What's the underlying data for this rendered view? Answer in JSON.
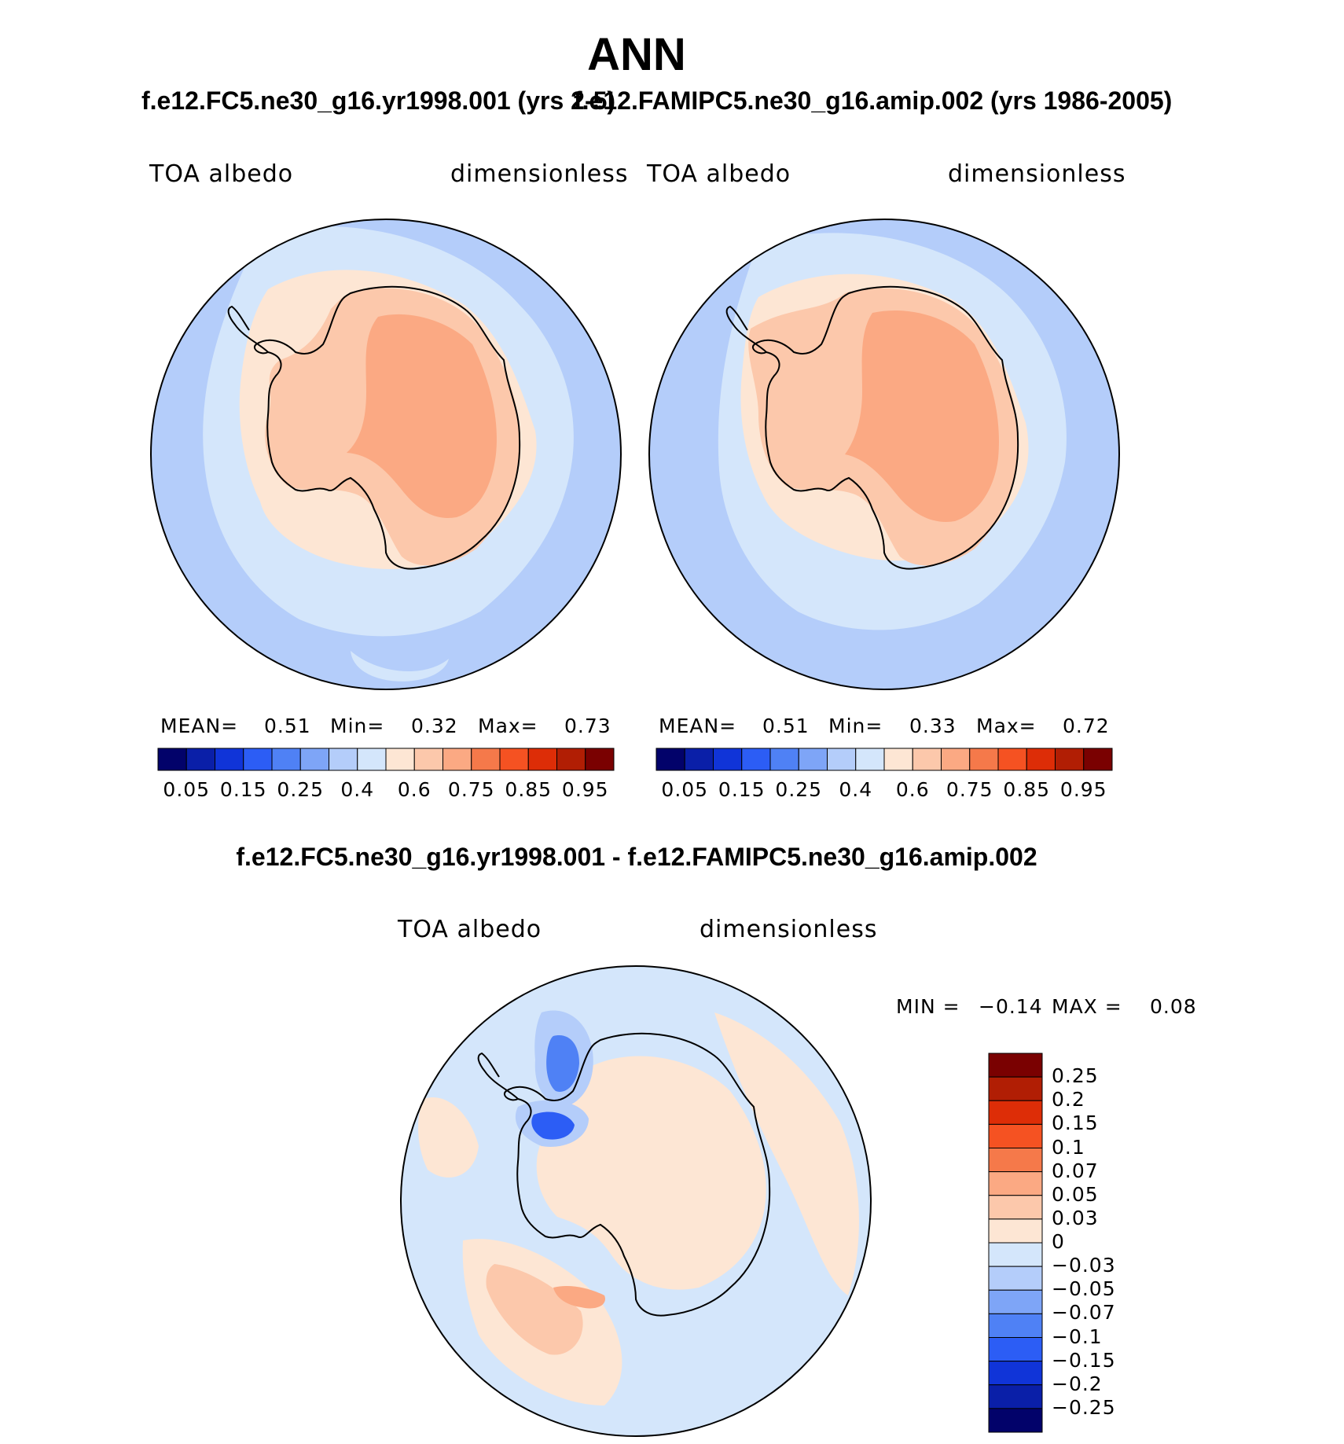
{
  "figure": {
    "title": "ANN",
    "left_run_title": "f.e12.FC5.ne30_g16.yr1998.001 (yrs 2-5)",
    "right_run_title": "f.e12.FAMIPC5.ne30_g16.amip.002 (yrs 1986-2005)",
    "diff_title": "f.e12.FC5.ne30_g16.yr1998.001 - f.e12.FAMIPC5.ne30_g16.amip.002"
  },
  "panels": [
    {
      "variable": "TOA albedo",
      "units": "dimensionless",
      "stats": {
        "mean_label": "MEAN=",
        "mean": "0.51",
        "min_label": "Min=",
        "min": "0.32",
        "max_label": "Max=",
        "max": "0.73"
      }
    },
    {
      "variable": "TOA albedo",
      "units": "dimensionless",
      "stats": {
        "mean_label": "MEAN=",
        "mean": "0.51",
        "min_label": "Min=",
        "min": "0.33",
        "max_label": "Max=",
        "max": "0.72"
      }
    },
    {
      "variable": "TOA albedo",
      "units": "dimensionless",
      "stats": {
        "min_label": "MIN =",
        "min": "−0.14",
        "max_label": "MAX =",
        "max": "0.08"
      }
    }
  ],
  "colors": {
    "ocean_far": "#b4cdfa",
    "ocean_near": "#d4e6fb",
    "seaice": "#fde6d4",
    "ice_mid": "#fcc8ab",
    "ice_high": "#fba983",
    "diff_pos": "#fde6d4",
    "diff_neg": "#d4e6fb",
    "coast": "#000000"
  },
  "chart_data": [
    {
      "type": "heatmap",
      "projection": "south polar stereographic",
      "variable": "TOA albedo",
      "units": "dimensionless",
      "stats": {
        "mean": 0.51,
        "min": 0.32,
        "max": 0.73
      },
      "colorbar": {
        "ticks": [
          "0.05",
          "0.15",
          "0.25",
          "0.4",
          "0.6",
          "0.75",
          "0.85",
          "0.95"
        ],
        "colors": [
          "#02026a",
          "#0a1fa8",
          "#1034d8",
          "#2c5df5",
          "#4f81f5",
          "#7ea5f7",
          "#b4cdfa",
          "#d4e6fb",
          "#fde6d4",
          "#fcc8ab",
          "#fba983",
          "#f5794a",
          "#f55222",
          "#dd2d07",
          "#b11e04",
          "#7a0101"
        ]
      }
    },
    {
      "type": "heatmap",
      "projection": "south polar stereographic",
      "variable": "TOA albedo",
      "units": "dimensionless",
      "stats": {
        "mean": 0.51,
        "min": 0.33,
        "max": 0.72
      },
      "colorbar": {
        "ticks": [
          "0.05",
          "0.15",
          "0.25",
          "0.4",
          "0.6",
          "0.75",
          "0.85",
          "0.95"
        ],
        "colors": [
          "#02026a",
          "#0a1fa8",
          "#1034d8",
          "#2c5df5",
          "#4f81f5",
          "#7ea5f7",
          "#b4cdfa",
          "#d4e6fb",
          "#fde6d4",
          "#fcc8ab",
          "#fba983",
          "#f5794a",
          "#f55222",
          "#dd2d07",
          "#b11e04",
          "#7a0101"
        ]
      }
    },
    {
      "type": "heatmap",
      "projection": "south polar stereographic",
      "variable": "TOA albedo",
      "units": "dimensionless",
      "stats": {
        "min": -0.14,
        "max": 0.08
      },
      "colorbar": {
        "ticks": [
          "0.25",
          "0.2",
          "0.15",
          "0.1",
          "0.07",
          "0.05",
          "0.03",
          "0",
          "−0.03",
          "−0.05",
          "−0.07",
          "−0.1",
          "−0.15",
          "−0.2",
          "−0.25"
        ],
        "colors": [
          "#7a0101",
          "#b11e04",
          "#dd2d07",
          "#f55222",
          "#f5794a",
          "#fba983",
          "#fcc8ab",
          "#fde6d4",
          "#d4e6fb",
          "#b4cdfa",
          "#7ea5f7",
          "#4f81f5",
          "#2c5df5",
          "#1034d8",
          "#0a1fa8",
          "#02026a"
        ]
      }
    }
  ]
}
